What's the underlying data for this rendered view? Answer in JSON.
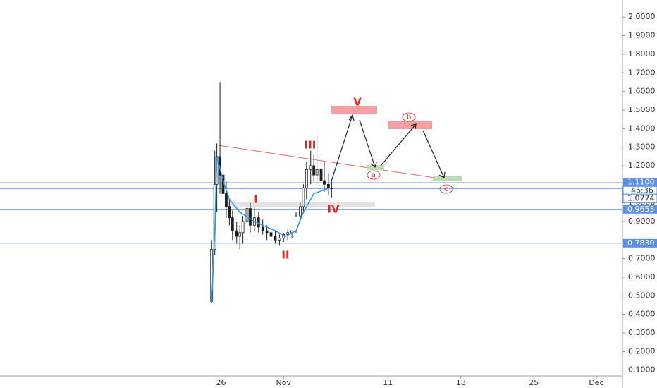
{
  "chart_data": {
    "type": "candlestick",
    "x": [
      298.1,
      298.4,
      298.6,
      298.9,
      299.2,
      299.5,
      299.8,
      300.1,
      300.5,
      300.8,
      301.1,
      301.5,
      301.8,
      302.2,
      302.6,
      303.0,
      303.4,
      303.8,
      304.2,
      304.6,
      305.0,
      305.4,
      305.8,
      306.2,
      306.6,
      306.9,
      307.2,
      307.6,
      307.9,
      308.2,
      308.6,
      308.9,
      309.3,
      309.6
    ],
    "open": [
      0.47,
      0.75,
      1.1,
      1.25,
      1.15,
      1.05,
      0.98,
      0.92,
      0.85,
      0.82,
      0.84,
      0.9,
      0.97,
      0.88,
      0.92,
      0.87,
      0.85,
      0.84,
      0.82,
      0.8,
      0.81,
      0.83,
      0.84,
      0.85,
      0.93,
      0.98,
      1.08,
      1.18,
      1.2,
      1.15,
      1.18,
      1.12,
      1.1,
      1.08
    ],
    "high": [
      0.8,
      1.28,
      1.32,
      1.65,
      1.3,
      1.12,
      1.02,
      0.96,
      0.9,
      0.88,
      0.93,
      1.08,
      1.0,
      0.98,
      0.95,
      0.91,
      0.88,
      0.86,
      0.85,
      0.83,
      0.84,
      0.86,
      0.85,
      0.95,
      1.0,
      1.1,
      1.22,
      1.28,
      1.26,
      1.38,
      1.25,
      1.22,
      1.16,
      1.12
    ],
    "low": [
      0.46,
      0.72,
      0.95,
      1.05,
      1.0,
      0.92,
      0.88,
      0.8,
      0.78,
      0.75,
      0.78,
      0.86,
      0.84,
      0.85,
      0.84,
      0.83,
      0.8,
      0.79,
      0.78,
      0.77,
      0.79,
      0.8,
      0.81,
      0.84,
      0.9,
      0.95,
      1.02,
      1.1,
      1.12,
      1.1,
      1.08,
      1.06,
      1.04,
      1.03
    ],
    "close": [
      0.75,
      1.1,
      1.25,
      1.15,
      1.05,
      0.98,
      0.92,
      0.85,
      0.82,
      0.84,
      0.9,
      0.97,
      0.88,
      0.92,
      0.87,
      0.85,
      0.84,
      0.82,
      0.8,
      0.81,
      0.83,
      0.84,
      0.85,
      0.93,
      0.98,
      1.08,
      1.18,
      1.2,
      1.15,
      1.18,
      1.12,
      1.1,
      1.08,
      1.0774
    ],
    "up_color": "#ffffff",
    "down_color": "#1e1e1e",
    "wick_color": "#1e1e1e",
    "ma": {
      "color": "#2196f3",
      "x": [
        298.1,
        298.4,
        298.6,
        299.2,
        299.8,
        300.8,
        302.2,
        304.2,
        305.2,
        306.2,
        306.9,
        307.9,
        308.9,
        309.4
      ],
      "values": [
        0.46,
        0.85,
        1.25,
        1.12,
        1.02,
        0.95,
        0.9,
        0.85,
        0.82,
        0.85,
        0.95,
        1.05,
        1.07,
        1.08
      ]
    },
    "xlim": [
      277.8,
      337.3
    ],
    "xticks": [
      {
        "value": 299,
        "label": "26"
      },
      {
        "value": 305,
        "label": "Nov"
      },
      {
        "value": 315,
        "label": "11"
      },
      {
        "value": 322,
        "label": "18"
      },
      {
        "value": 329,
        "label": "25"
      },
      {
        "value": 335,
        "label": "Dec"
      }
    ],
    "ylim": [
      0.023,
      2.092
    ],
    "yticks": [
      {
        "value": 0.1,
        "label": "0.1000"
      },
      {
        "value": 0.2,
        "label": "0.2000"
      },
      {
        "value": 0.3,
        "label": "0.3000"
      },
      {
        "value": 0.4,
        "label": "0.4000"
      },
      {
        "value": 0.5,
        "label": "0.5000"
      },
      {
        "value": 0.6,
        "label": "0.6000"
      },
      {
        "value": 0.7,
        "label": "0.7000"
      },
      {
        "value": 0.9,
        "label": "0.9000"
      },
      {
        "value": 1.0,
        "label": "1.0000"
      },
      {
        "value": 1.2,
        "label": "1.2000"
      },
      {
        "value": 1.3,
        "label": "1.3000"
      },
      {
        "value": 1.4,
        "label": "1.4000"
      },
      {
        "value": 1.5,
        "label": "1.5000"
      },
      {
        "value": 1.6,
        "label": "1.6000"
      },
      {
        "value": 1.7,
        "label": "1.7000"
      },
      {
        "value": 1.8,
        "label": "1.8000"
      },
      {
        "value": 1.9,
        "label": "1.9000"
      },
      {
        "value": 2.0,
        "label": "2.0000"
      }
    ],
    "levels": [
      {
        "value": 1.11,
        "label": "1.1100"
      },
      0.9653,
      {
        "value": 0.783,
        "label": "0.7830"
      }
    ],
    "level_color": "#5b8fe8",
    "last_price": 1.0774,
    "countdown": "46:36",
    "annotations": [
      "I",
      "II",
      "III",
      "IV",
      "V",
      "a",
      "b",
      "c"
    ]
  }
}
